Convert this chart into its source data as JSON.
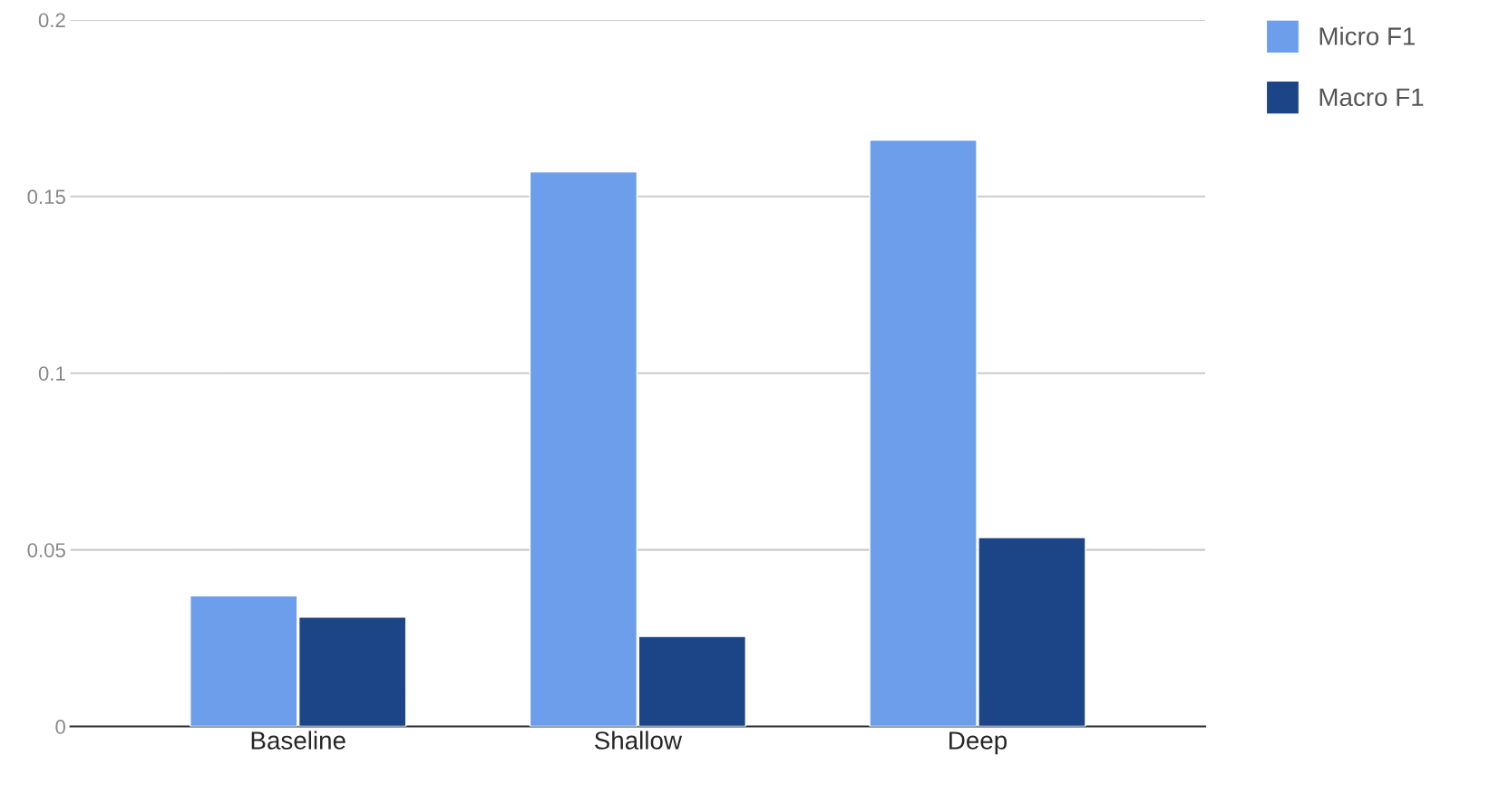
{
  "chart_data": {
    "type": "bar",
    "categories": [
      "Baseline",
      "Shallow",
      "Deep"
    ],
    "series": [
      {
        "name": "Micro F1",
        "color": "#6d9eeb",
        "values": [
          0.037,
          0.157,
          0.166
        ]
      },
      {
        "name": "Macro F1",
        "color": "#1c4587",
        "values": [
          0.031,
          0.0255,
          0.0535
        ]
      }
    ],
    "ylim": [
      0,
      0.2
    ],
    "yticks": [
      {
        "value": 0,
        "label": "0"
      },
      0.05,
      0.1,
      0.15,
      0.2
    ],
    "grid": "y",
    "legend": "top right"
  }
}
